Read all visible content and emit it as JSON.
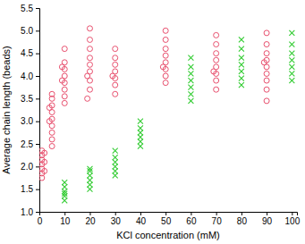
{
  "chart_data": {
    "type": "scatter",
    "x_label": "KCl concentration (mM)",
    "y_label": "Average chain length (beads)",
    "xlim": [
      0,
      102
    ],
    "xticks": [
      0,
      10,
      20,
      30,
      40,
      50,
      60,
      70,
      80,
      90,
      100
    ],
    "ylim": [
      1.0,
      5.5
    ],
    "yticks": [
      {
        "value": 1.0,
        "label": "1.0"
      },
      1.5,
      {
        "value": 2.0,
        "label": "2.0"
      },
      2.5,
      {
        "value": 3.0,
        "label": "3.0"
      },
      3.5,
      {
        "value": 4.0,
        "label": "4.0"
      },
      4.5,
      {
        "value": 5.0,
        "label": "5.0"
      },
      5.5
    ],
    "grid": false,
    "series": [
      {
        "color": "#e8506e",
        "marker": "circle",
        "x": [
          1,
          1,
          1,
          1,
          1,
          1,
          1,
          2,
          2,
          2,
          5,
          5,
          5,
          5,
          5,
          5,
          5,
          5,
          5,
          4,
          4,
          10,
          10,
          10,
          10,
          10,
          10,
          10,
          10,
          9,
          9,
          19,
          20,
          20,
          20,
          20,
          20,
          20,
          20,
          20,
          19,
          30,
          30,
          30,
          30,
          30,
          30,
          30,
          29,
          50,
          50,
          50,
          50,
          50,
          50,
          50,
          50,
          49,
          70,
          70,
          70,
          70,
          70,
          70,
          70,
          70,
          69,
          90,
          90,
          90,
          90,
          90,
          90,
          90,
          90,
          90,
          89
        ],
        "values": [
          1.75,
          1.85,
          1.95,
          2.05,
          2.15,
          2.25,
          2.35,
          1.9,
          2.1,
          2.3,
          2.45,
          2.6,
          2.75,
          2.9,
          3.05,
          3.2,
          3.35,
          3.5,
          3.6,
          3.0,
          3.3,
          3.4,
          3.55,
          3.7,
          3.85,
          4.0,
          4.15,
          4.3,
          4.6,
          3.9,
          4.2,
          3.5,
          3.7,
          3.9,
          4.1,
          4.25,
          4.4,
          4.6,
          4.8,
          5.05,
          4.0,
          3.6,
          3.8,
          3.95,
          4.1,
          4.25,
          4.4,
          4.6,
          4.0,
          3.85,
          4.0,
          4.15,
          4.3,
          4.45,
          4.6,
          4.8,
          5.0,
          4.2,
          3.7,
          3.9,
          4.05,
          4.2,
          4.35,
          4.5,
          4.7,
          4.9,
          4.1,
          3.45,
          3.7,
          3.9,
          4.05,
          4.2,
          4.35,
          4.5,
          4.7,
          4.95,
          4.3
        ]
      },
      {
        "color": "#33cc33",
        "marker": "x",
        "x": [
          10,
          10,
          10,
          10,
          10,
          10,
          20,
          20,
          20,
          20,
          20,
          20,
          30,
          30,
          30,
          30,
          30,
          30,
          40,
          40,
          40,
          40,
          40,
          40,
          60,
          60,
          60,
          60,
          60,
          60,
          60,
          80,
          80,
          80,
          80,
          80,
          80,
          80,
          100,
          100,
          100,
          100,
          100,
          100,
          100
        ],
        "values": [
          1.25,
          1.35,
          1.45,
          1.55,
          1.65,
          1.4,
          1.5,
          1.6,
          1.7,
          1.8,
          1.9,
          1.95,
          1.8,
          1.9,
          2.0,
          2.1,
          2.2,
          2.35,
          2.45,
          2.55,
          2.65,
          2.75,
          2.85,
          3.0,
          3.45,
          3.6,
          3.75,
          3.9,
          4.05,
          4.2,
          4.4,
          3.8,
          3.95,
          4.1,
          4.25,
          4.4,
          4.6,
          4.8,
          3.9,
          4.05,
          4.2,
          4.35,
          4.5,
          4.7,
          4.95
        ]
      }
    ]
  }
}
